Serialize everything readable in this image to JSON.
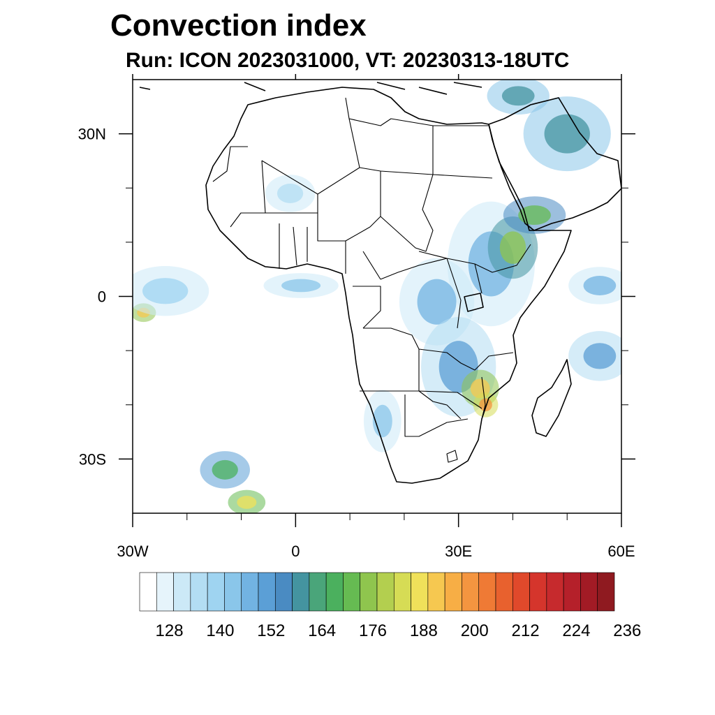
{
  "title": "Convection index",
  "subtitle": "Run: ICON 2023031000,  VT: 20230313-18UTC",
  "map": {
    "lon_range": [
      -30,
      60
    ],
    "lat_range": [
      -40,
      40
    ],
    "lon_ticks": [
      {
        "value": -30,
        "label": "30W"
      },
      {
        "value": 0,
        "label": "0"
      },
      {
        "value": 30,
        "label": "30E"
      },
      {
        "value": 60,
        "label": "60E"
      }
    ],
    "lat_ticks": [
      {
        "value": 30,
        "label": "30N"
      },
      {
        "value": 0,
        "label": "0"
      },
      {
        "value": -30,
        "label": "30S"
      }
    ],
    "minor_lon_ticks": [
      -20,
      -10,
      10,
      20,
      40,
      50
    ],
    "minor_lat_ticks": [
      20,
      10,
      -10,
      -20
    ]
  },
  "colorbar": {
    "colors": [
      "#ffffff",
      "#e6f4fb",
      "#cce9f7",
      "#b3ddf3",
      "#9fd4f1",
      "#8ac6ea",
      "#72b3e2",
      "#5b9fd6",
      "#4a8bc2",
      "#4494a0",
      "#4aa57a",
      "#4bb05e",
      "#66bb52",
      "#8fc54e",
      "#b3cf4f",
      "#d6dc55",
      "#f0e15a",
      "#f6c850",
      "#f7ae45",
      "#f49540",
      "#ef7a35",
      "#e8612e",
      "#e0492b",
      "#d5352c",
      "#c62a2d",
      "#b5202a",
      "#a21b25",
      "#8f1a20"
    ],
    "labels": [
      {
        "index": 2,
        "text": "128"
      },
      {
        "index": 5,
        "text": "140"
      },
      {
        "index": 8,
        "text": "152"
      },
      {
        "index": 11,
        "text": "164"
      },
      {
        "index": 14,
        "text": "176"
      },
      {
        "index": 17,
        "text": "188"
      },
      {
        "index": 20,
        "text": "200"
      },
      {
        "index": 23,
        "text": "212"
      },
      {
        "index": 26,
        "text": "224"
      },
      {
        "index": 29,
        "text": "236"
      }
    ]
  },
  "field_blobs": [
    {
      "lon": 36,
      "lat": 6,
      "rlon": 7,
      "rlat": 10,
      "level": 6
    },
    {
      "lon": 40,
      "lat": 9,
      "rlon": 4,
      "rlat": 5,
      "level": 13
    },
    {
      "lon": 44,
      "lat": 15,
      "rlon": 5,
      "rlat": 3,
      "level": 12
    },
    {
      "lon": 50,
      "lat": 30,
      "rlon": 7,
      "rlat": 6,
      "level": 9
    },
    {
      "lon": 41,
      "lat": 37,
      "rlon": 5,
      "rlat": 3,
      "level": 9
    },
    {
      "lon": 26,
      "lat": -1,
      "rlon": 6,
      "rlat": 7,
      "level": 6
    },
    {
      "lon": 30,
      "lat": -13,
      "rlon": 6,
      "rlat": 8,
      "level": 7
    },
    {
      "lon": 34,
      "lat": -17,
      "rlon": 3,
      "rlat": 3,
      "level": 17
    },
    {
      "lon": 35,
      "lat": -20,
      "rlon": 2,
      "rlat": 2,
      "level": 19
    },
    {
      "lon": 56,
      "lat": 2,
      "rlon": 5,
      "rlat": 3,
      "level": 6
    },
    {
      "lon": 56,
      "lat": -11,
      "rlon": 5,
      "rlat": 4,
      "level": 7
    },
    {
      "lon": -28,
      "lat": -3,
      "rlon": 2,
      "rlat": 1.5,
      "level": 17
    },
    {
      "lon": -24,
      "lat": 1,
      "rlon": 7,
      "rlat": 4,
      "level": 4
    },
    {
      "lon": 1,
      "lat": 2,
      "rlon": 6,
      "rlat": 2,
      "level": 5
    },
    {
      "lon": 16,
      "lat": -23,
      "rlon": 3,
      "rlat": 5,
      "level": 5
    },
    {
      "lon": -13,
      "lat": -32,
      "rlon": 4,
      "rlat": 3,
      "level": 11
    },
    {
      "lon": -9,
      "lat": -38,
      "rlon": 3,
      "rlat": 2,
      "level": 16
    },
    {
      "lon": -1,
      "lat": 19,
      "rlon": 4,
      "rlat": 3,
      "level": 3
    }
  ]
}
